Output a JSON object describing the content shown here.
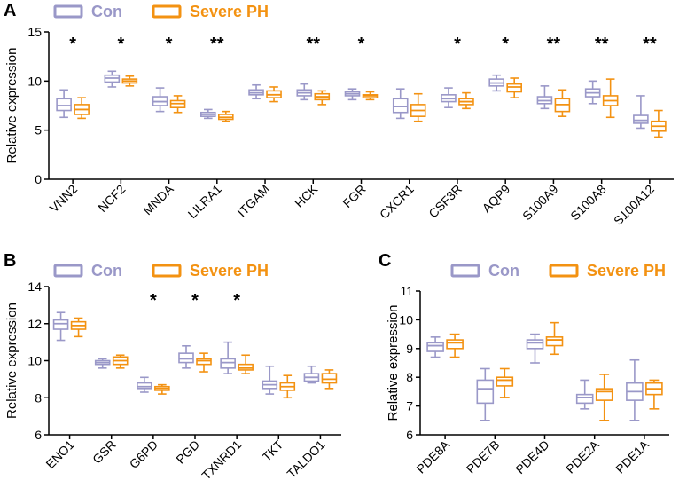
{
  "colors": {
    "con": "#9a98c8",
    "severe": "#f39212",
    "axis": "#000000"
  },
  "legend": {
    "con": "Con",
    "severe": "Severe PH"
  },
  "chart_data": [
    {
      "panel": "A",
      "type": "box",
      "ylabel": "Relative expression",
      "ylim": [
        0,
        15
      ],
      "yticks": [
        0,
        5,
        10,
        15
      ],
      "categories": [
        "VNN2",
        "NCF2",
        "MNDA",
        "LILRA1",
        "ITGAM",
        "HCK",
        "FGR",
        "CXCR1",
        "CSF3R",
        "AQP9",
        "S100A9",
        "S100A8",
        "S100A12"
      ],
      "significance": [
        "*",
        "*",
        "*",
        "**",
        "",
        "**",
        "*",
        "",
        "*",
        "*",
        "**",
        "**",
        "**"
      ],
      "series": [
        {
          "name": "Con",
          "boxes": [
            {
              "min": 6.3,
              "q1": 7.0,
              "med": 7.5,
              "q3": 8.2,
              "max": 9.1
            },
            {
              "min": 9.4,
              "q1": 9.9,
              "med": 10.3,
              "q3": 10.6,
              "max": 11.0
            },
            {
              "min": 6.9,
              "q1": 7.5,
              "med": 7.9,
              "q3": 8.4,
              "max": 9.3
            },
            {
              "min": 6.2,
              "q1": 6.4,
              "med": 6.6,
              "q3": 6.8,
              "max": 7.1
            },
            {
              "min": 8.2,
              "q1": 8.6,
              "med": 8.8,
              "q3": 9.1,
              "max": 9.6
            },
            {
              "min": 8.1,
              "q1": 8.5,
              "med": 8.8,
              "q3": 9.1,
              "max": 9.7
            },
            {
              "min": 8.1,
              "q1": 8.5,
              "med": 8.7,
              "q3": 8.9,
              "max": 9.2
            },
            {
              "min": 6.2,
              "q1": 6.8,
              "med": 7.4,
              "q3": 8.2,
              "max": 9.2
            },
            {
              "min": 7.3,
              "q1": 7.9,
              "med": 8.2,
              "q3": 8.6,
              "max": 9.3
            },
            {
              "min": 9.0,
              "q1": 9.5,
              "med": 9.8,
              "q3": 10.2,
              "max": 10.6
            },
            {
              "min": 7.2,
              "q1": 7.7,
              "med": 8.0,
              "q3": 8.4,
              "max": 9.5
            },
            {
              "min": 7.7,
              "q1": 8.4,
              "med": 8.8,
              "q3": 9.2,
              "max": 10.0
            },
            {
              "min": 5.2,
              "q1": 5.7,
              "med": 6.0,
              "q3": 6.5,
              "max": 8.5
            }
          ]
        },
        {
          "name": "Severe PH",
          "boxes": [
            {
              "min": 6.2,
              "q1": 6.6,
              "med": 7.1,
              "q3": 7.6,
              "max": 8.3
            },
            {
              "min": 9.5,
              "q1": 9.8,
              "med": 10.0,
              "q3": 10.2,
              "max": 10.5
            },
            {
              "min": 6.8,
              "q1": 7.3,
              "med": 7.7,
              "q3": 8.0,
              "max": 8.5
            },
            {
              "min": 5.9,
              "q1": 6.1,
              "med": 6.3,
              "q3": 6.6,
              "max": 6.9
            },
            {
              "min": 7.9,
              "q1": 8.3,
              "med": 8.6,
              "q3": 9.0,
              "max": 9.4
            },
            {
              "min": 7.6,
              "q1": 8.1,
              "med": 8.4,
              "q3": 8.7,
              "max": 9.0
            },
            {
              "min": 8.1,
              "q1": 8.3,
              "med": 8.5,
              "q3": 8.6,
              "max": 8.9
            },
            {
              "min": 5.9,
              "q1": 6.4,
              "med": 7.0,
              "q3": 7.6,
              "max": 8.7
            },
            {
              "min": 7.2,
              "q1": 7.6,
              "med": 7.9,
              "q3": 8.2,
              "max": 8.8
            },
            {
              "min": 8.3,
              "q1": 8.9,
              "med": 9.4,
              "q3": 9.7,
              "max": 10.3
            },
            {
              "min": 6.4,
              "q1": 6.9,
              "med": 7.6,
              "q3": 8.2,
              "max": 9.1
            },
            {
              "min": 6.3,
              "q1": 7.5,
              "med": 8.0,
              "q3": 8.5,
              "max": 10.2
            },
            {
              "min": 4.3,
              "q1": 4.9,
              "med": 5.4,
              "q3": 5.9,
              "max": 7.0
            }
          ]
        }
      ]
    },
    {
      "panel": "B",
      "type": "box",
      "ylabel": "Relative expression",
      "ylim": [
        6,
        14
      ],
      "yticks": [
        6,
        8,
        10,
        12,
        14
      ],
      "categories": [
        "ENO1",
        "GSR",
        "G6PD",
        "PGD",
        "TXNRD1",
        "TKT",
        "TALDO1"
      ],
      "significance": [
        "",
        "",
        "*",
        "*",
        "*",
        "",
        ""
      ],
      "series": [
        {
          "name": "Con",
          "boxes": [
            {
              "min": 11.1,
              "q1": 11.7,
              "med": 12.0,
              "q3": 12.2,
              "max": 12.6
            },
            {
              "min": 9.6,
              "q1": 9.8,
              "med": 9.9,
              "q3": 10.0,
              "max": 10.1
            },
            {
              "min": 8.3,
              "q1": 8.5,
              "med": 8.6,
              "q3": 8.8,
              "max": 9.1
            },
            {
              "min": 9.6,
              "q1": 9.9,
              "med": 10.1,
              "q3": 10.4,
              "max": 10.8
            },
            {
              "min": 9.3,
              "q1": 9.6,
              "med": 9.9,
              "q3": 10.1,
              "max": 11.0
            },
            {
              "min": 8.2,
              "q1": 8.5,
              "med": 8.7,
              "q3": 8.9,
              "max": 9.7
            },
            {
              "min": 8.8,
              "q1": 8.9,
              "med": 9.1,
              "q3": 9.3,
              "max": 9.7
            }
          ]
        },
        {
          "name": "Severe PH",
          "boxes": [
            {
              "min": 11.3,
              "q1": 11.7,
              "med": 11.9,
              "q3": 12.1,
              "max": 12.3
            },
            {
              "min": 9.6,
              "q1": 9.8,
              "med": 10.0,
              "q3": 10.2,
              "max": 10.3
            },
            {
              "min": 8.2,
              "q1": 8.4,
              "med": 8.5,
              "q3": 8.6,
              "max": 8.7
            },
            {
              "min": 9.4,
              "q1": 9.8,
              "med": 10.0,
              "q3": 10.1,
              "max": 10.4
            },
            {
              "min": 9.3,
              "q1": 9.5,
              "med": 9.6,
              "q3": 9.8,
              "max": 10.3
            },
            {
              "min": 8.0,
              "q1": 8.4,
              "med": 8.6,
              "q3": 8.8,
              "max": 9.2
            },
            {
              "min": 8.5,
              "q1": 8.8,
              "med": 9.0,
              "q3": 9.3,
              "max": 9.5
            }
          ]
        }
      ]
    },
    {
      "panel": "C",
      "type": "box",
      "ylabel": "Relative expression",
      "ylim": [
        6,
        11
      ],
      "yticks": [
        6,
        7,
        8,
        9,
        10,
        11
      ],
      "categories": [
        "PDE8A",
        "PDE7B",
        "PDE4D",
        "PDE2A",
        "PDE1A"
      ],
      "significance": [
        "",
        "",
        "",
        "",
        ""
      ],
      "series": [
        {
          "name": "Con",
          "boxes": [
            {
              "min": 8.7,
              "q1": 8.9,
              "med": 9.1,
              "q3": 9.2,
              "max": 9.4
            },
            {
              "min": 6.5,
              "q1": 7.1,
              "med": 7.6,
              "q3": 7.9,
              "max": 8.3
            },
            {
              "min": 8.5,
              "q1": 9.0,
              "med": 9.2,
              "q3": 9.3,
              "max": 9.5
            },
            {
              "min": 6.9,
              "q1": 7.1,
              "med": 7.3,
              "q3": 7.4,
              "max": 7.9
            },
            {
              "min": 6.5,
              "q1": 7.2,
              "med": 7.5,
              "q3": 7.8,
              "max": 8.6
            }
          ]
        },
        {
          "name": "Severe PH",
          "boxes": [
            {
              "min": 8.7,
              "q1": 9.0,
              "med": 9.2,
              "q3": 9.3,
              "max": 9.5
            },
            {
              "min": 7.3,
              "q1": 7.7,
              "med": 7.9,
              "q3": 8.0,
              "max": 8.3
            },
            {
              "min": 8.8,
              "q1": 9.1,
              "med": 9.3,
              "q3": 9.4,
              "max": 9.9
            },
            {
              "min": 6.5,
              "q1": 7.2,
              "med": 7.5,
              "q3": 7.6,
              "max": 8.1
            },
            {
              "min": 6.9,
              "q1": 7.4,
              "med": 7.6,
              "q3": 7.8,
              "max": 7.9
            }
          ]
        }
      ]
    }
  ]
}
